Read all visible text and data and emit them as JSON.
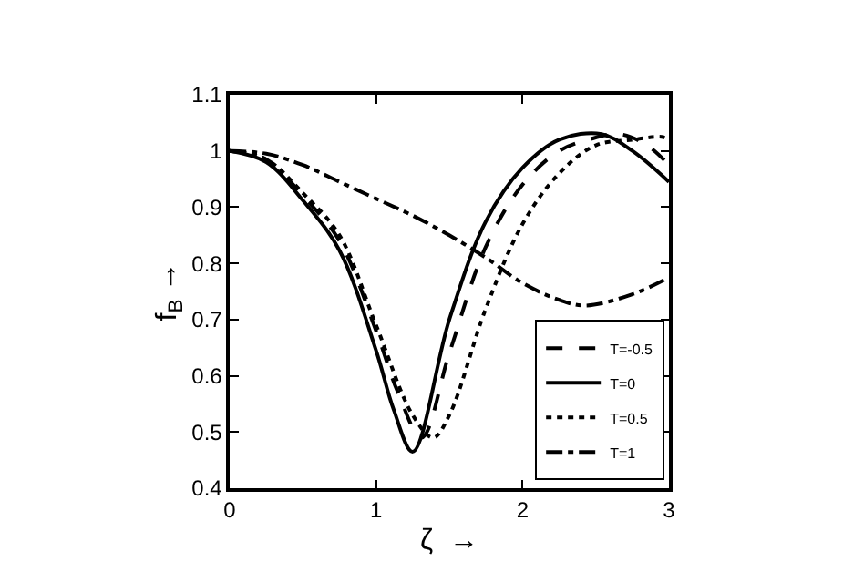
{
  "chart_data": {
    "type": "line",
    "xlabel": "ζ  →",
    "ylabel": "f$_{B}$ →",
    "xlim": [
      0,
      3
    ],
    "xticks": [
      0,
      1,
      2,
      3
    ],
    "ylim": [
      0.4,
      1.1
    ],
    "yticks": [
      0.4,
      0.5,
      0.6,
      0.7,
      0.8,
      0.9,
      1,
      1.1
    ],
    "legend": "bottom right",
    "marker": "none",
    "series": [
      {
        "name": "T=-0.5",
        "color": "#000000",
        "line_style": "dashed",
        "x": [
          0,
          0.25,
          0.5,
          0.75,
          1.0,
          1.15,
          1.31,
          1.5,
          1.75,
          2.0,
          2.25,
          2.45,
          2.66,
          2.85,
          3.0
        ],
        "values": [
          1,
          0.985,
          0.92,
          0.84,
          0.68,
          0.57,
          0.49,
          0.64,
          0.83,
          0.94,
          1.0,
          1.02,
          1.03,
          1.01,
          0.975
        ]
      },
      {
        "name": "T=0",
        "color": "#000000",
        "line_style": "solid",
        "x": [
          0,
          0.25,
          0.5,
          0.75,
          1.0,
          1.12,
          1.25,
          1.5,
          1.75,
          2.0,
          2.25,
          2.54,
          2.75,
          3.0
        ],
        "values": [
          1,
          0.98,
          0.912,
          0.823,
          0.645,
          0.54,
          0.465,
          0.7,
          0.875,
          0.97,
          1.02,
          1.03,
          1.0,
          0.945
        ]
      },
      {
        "name": "T=0.5",
        "color": "#000000",
        "line_style": "dotted",
        "x": [
          0,
          0.25,
          0.5,
          0.75,
          1.0,
          1.25,
          1.39,
          1.5,
          1.75,
          2.0,
          2.25,
          2.5,
          2.75,
          2.95,
          3.0
        ],
        "values": [
          1,
          0.985,
          0.925,
          0.85,
          0.69,
          0.53,
          0.49,
          0.53,
          0.72,
          0.87,
          0.96,
          1.01,
          1.02,
          1.025,
          1.02
        ]
      },
      {
        "name": "T=1",
        "color": "#000000",
        "line_style": "dashdot",
        "x": [
          0,
          0.25,
          0.5,
          0.75,
          1.0,
          1.25,
          1.5,
          1.75,
          2.0,
          2.25,
          2.43,
          2.75,
          3.0
        ],
        "values": [
          1,
          0.995,
          0.975,
          0.945,
          0.915,
          0.885,
          0.85,
          0.81,
          0.765,
          0.735,
          0.725,
          0.745,
          0.775
        ]
      }
    ]
  }
}
